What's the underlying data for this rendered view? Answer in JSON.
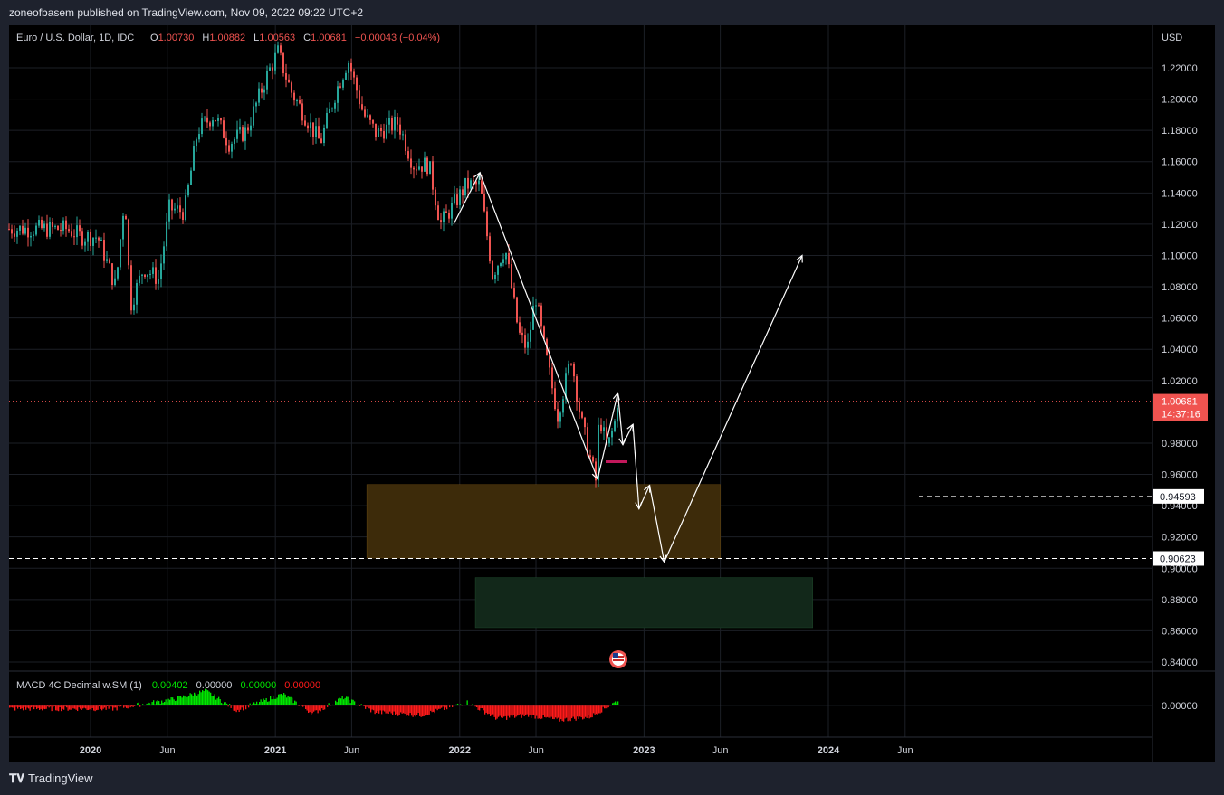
{
  "header": {
    "publish_line": "zoneofbasem published on TradingView.com, Nov 09, 2022 09:22 UTC+2"
  },
  "legend": {
    "symbol": "Euro / U.S. Dollar, 1D, IDC",
    "o_label": "O",
    "o_value": "1.00730",
    "h_label": "H",
    "h_value": "1.00882",
    "l_label": "L",
    "l_value": "1.00563",
    "c_label": "C",
    "c_value": "1.00681",
    "change": "−0.00043 (−0.04%)"
  },
  "macd_legend": {
    "name": "MACD 4C Decimal w.SM (1)",
    "v1": "0.00402",
    "v2": "0.00000",
    "v3": "0.00000",
    "v4": "0.00000"
  },
  "footer": {
    "brand": "TradingView"
  },
  "colors": {
    "up": "#26a69a",
    "down": "#ef5350",
    "macd_up": "#00e600",
    "macd_down": "#ff1a1a",
    "zone_orange": "#3d2b0a",
    "zone_green": "#12281a",
    "price_tag": "#f05350"
  },
  "chart_data": {
    "type": "candlestick",
    "symbol": "Euro / U.S. Dollar, 1D, IDC",
    "currency_label": "USD",
    "y_ticks": [
      "1.22000",
      "1.20000",
      "1.18000",
      "1.16000",
      "1.14000",
      "1.12000",
      "1.10000",
      "1.08000",
      "1.06000",
      "1.04000",
      "1.02000",
      "0.98000",
      "0.96000",
      "0.94000",
      "0.92000",
      "0.90000",
      "0.88000",
      "0.86000",
      "0.84000"
    ],
    "x_ticks": [
      "2020",
      "Jun",
      "2021",
      "Jun",
      "2022",
      "Jun",
      "2023",
      "Jun",
      "2024",
      "Jun"
    ],
    "last_price": "1.00681",
    "countdown": "14:37:16",
    "level_labels": [
      "0.94593",
      "0.90623"
    ],
    "levels": [
      0.94593,
      0.90623
    ],
    "zones": [
      {
        "name": "supply-demand-zone",
        "from_date": "2021-07",
        "to_date": "2023-06",
        "price_high": 0.9535,
        "price_low": 0.9065
      },
      {
        "name": "lower-target-zone",
        "from_date": "2022-02",
        "to_date": "2023-12",
        "price_high": 0.894,
        "price_low": 0.862
      }
    ],
    "close_path": [
      [
        "2019-11-15",
        1.117
      ],
      [
        "2019-12-15",
        1.112
      ],
      [
        "2020-01-15",
        1.112
      ],
      [
        "2020-02-20",
        1.08
      ],
      [
        "2020-03-09",
        1.14
      ],
      [
        "2020-03-20",
        1.068
      ],
      [
        "2020-04-15",
        1.092
      ],
      [
        "2020-05-15",
        1.085
      ],
      [
        "2020-06-05",
        1.13
      ],
      [
        "2020-07-05",
        1.128
      ],
      [
        "2020-07-31",
        1.18
      ],
      [
        "2020-09-01",
        1.19
      ],
      [
        "2020-10-01",
        1.172
      ],
      [
        "2020-11-05",
        1.18
      ],
      [
        "2020-12-15",
        1.215
      ],
      [
        "2021-01-06",
        1.23
      ],
      [
        "2021-02-01",
        1.205
      ],
      [
        "2021-03-31",
        1.172
      ],
      [
        "2021-05-01",
        1.205
      ],
      [
        "2021-05-25",
        1.225
      ],
      [
        "2021-06-25",
        1.19
      ],
      [
        "2021-07-20",
        1.178
      ],
      [
        "2021-09-01",
        1.185
      ],
      [
        "2021-10-01",
        1.158
      ],
      [
        "2021-11-01",
        1.158
      ],
      [
        "2021-11-24",
        1.12
      ],
      [
        "2021-12-15",
        1.13
      ],
      [
        "2022-01-14",
        1.145
      ],
      [
        "2022-02-10",
        1.145
      ],
      [
        "2022-03-07",
        1.088
      ],
      [
        "2022-04-01",
        1.105
      ],
      [
        "2022-04-28",
        1.05
      ],
      [
        "2022-05-15",
        1.04
      ],
      [
        "2022-05-31",
        1.075
      ],
      [
        "2022-06-15",
        1.045
      ],
      [
        "2022-07-14",
        0.998
      ],
      [
        "2022-08-10",
        1.035
      ],
      [
        "2022-08-29",
        0.995
      ],
      [
        "2022-09-28",
        0.955
      ],
      [
        "2022-10-04",
        0.998
      ],
      [
        "2022-10-20",
        0.976
      ],
      [
        "2022-11-04",
        0.993
      ],
      [
        "2022-11-08",
        1.0068
      ]
    ],
    "projection_path": [
      [
        "2021-12-20",
        1.12
      ],
      [
        "2022-02-10",
        1.153
      ],
      [
        "2022-10-01",
        0.957
      ],
      [
        "2022-11-10",
        1.012
      ],
      [
        "2022-11-20",
        0.979
      ],
      [
        "2022-12-10",
        0.992
      ],
      [
        "2022-12-22",
        0.938
      ],
      [
        "2023-01-12",
        0.953
      ],
      [
        "2023-02-10",
        0.904
      ],
      [
        "2023-11-10",
        1.1
      ]
    ],
    "macd": [
      {
        "date": "2020-02",
        "value": -0.002
      },
      {
        "date": "2020-06",
        "value": 0.004
      },
      {
        "date": "2020-08",
        "value": 0.009
      },
      {
        "date": "2020-10",
        "value": -0.003
      },
      {
        "date": "2021-01",
        "value": 0.007
      },
      {
        "date": "2021-03",
        "value": -0.005
      },
      {
        "date": "2021-05",
        "value": 0.005
      },
      {
        "date": "2021-07",
        "value": -0.004
      },
      {
        "date": "2021-10",
        "value": -0.006
      },
      {
        "date": "2022-01",
        "value": 0.002
      },
      {
        "date": "2022-03",
        "value": -0.008
      },
      {
        "date": "2022-05",
        "value": -0.006
      },
      {
        "date": "2022-07",
        "value": -0.009
      },
      {
        "date": "2022-09",
        "value": -0.007
      },
      {
        "date": "2022-11",
        "value": 0.00402
      }
    ],
    "macd_y_tick": "0.00000"
  }
}
